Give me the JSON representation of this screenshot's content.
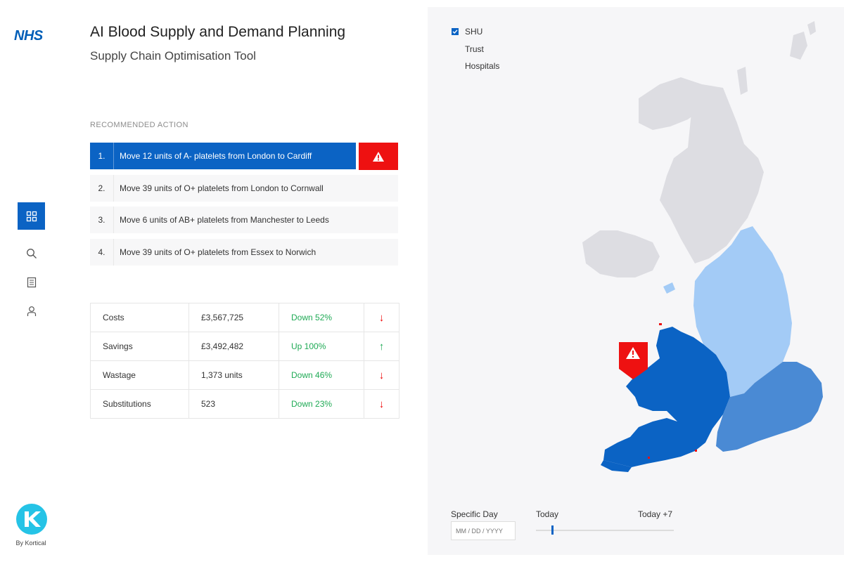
{
  "app": {
    "logo_text": "NHS",
    "title": "AI Blood Supply and Demand Planning",
    "subtitle": "Supply Chain Optimisation Tool",
    "footer_caption": "By Kortical"
  },
  "sidebar": {
    "items": [
      {
        "name": "dashboard",
        "icon": "grid-icon",
        "active": true
      },
      {
        "name": "search",
        "icon": "search-icon",
        "active": false
      },
      {
        "name": "reports",
        "icon": "document-icon",
        "active": false
      },
      {
        "name": "profile",
        "icon": "user-icon",
        "active": false
      }
    ]
  },
  "recommended": {
    "label": "RECOMMENDED ACTION",
    "items": [
      {
        "num": "1.",
        "text": "Move 12 units of A- platelets from London to Cardiff"
      },
      {
        "num": "2.",
        "text": "Move 39 units of O+ platelets from London to Cornwall"
      },
      {
        "num": "3.",
        "text": "Move 6 units of AB+ platelets from Manchester to Leeds"
      },
      {
        "num": "4.",
        "text": "Move 39 units of O+ platelets from Essex to Norwich"
      }
    ]
  },
  "metrics": {
    "rows": [
      {
        "name": "Costs",
        "value": "£3,567,725",
        "change": "Down 52%",
        "arrow": "↓",
        "direction": "down"
      },
      {
        "name": "Savings",
        "value": "£3,492,482",
        "change": "Up 100%",
        "arrow": "↑",
        "direction": "up"
      },
      {
        "name": "Wastage",
        "value": "1,373 units",
        "change": "Down 46%",
        "arrow": "↓",
        "direction": "down"
      },
      {
        "name": "Substitutions",
        "value": "523",
        "change": "Down 23%",
        "arrow": "↓",
        "direction": "down"
      }
    ]
  },
  "map": {
    "layers": [
      {
        "label": "SHU",
        "checked": true
      },
      {
        "label": "Trust",
        "checked": false
      },
      {
        "label": "Hospitals",
        "checked": false
      }
    ],
    "colors": {
      "background": "#f6f6f8",
      "land_other": "#dddde2",
      "region_north": "#a3cbf6",
      "region_west": "#0b63c4",
      "region_southeast": "#4a8ad4",
      "alert": "#ee1111"
    }
  },
  "timeline": {
    "specific_day_label": "Specific Day",
    "date_placeholder": "MM / DD / YYYY",
    "start_label": "Today",
    "end_label": "Today +7",
    "selected_fraction": 0.11
  },
  "colors": {
    "accent": "#0b63c4",
    "alert": "#ee1111",
    "positive": "#1faa55",
    "negative": "#ee0000"
  }
}
